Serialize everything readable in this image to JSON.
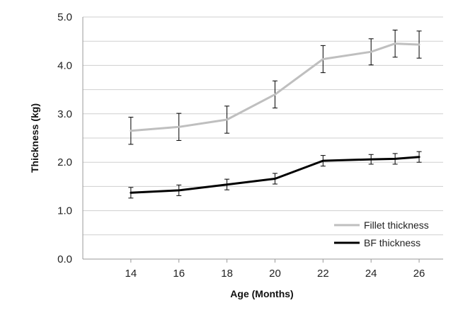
{
  "chart_data": {
    "type": "line",
    "title": "",
    "xlabel": "Age (Months)",
    "ylabel": "Thickness (kg)",
    "x_ticks": [
      14,
      16,
      18,
      20,
      22,
      24,
      26
    ],
    "xlim": [
      12,
      27
    ],
    "ylim": [
      0,
      5
    ],
    "y_ticks": [
      "0.0",
      "1.0",
      "2.0",
      "3.0",
      "4.0",
      "5.0"
    ],
    "grid": "horizontal",
    "legend_position": "bottom-right",
    "series": [
      {
        "name": "Fillet thickness",
        "color": "#bfbfbf",
        "x": [
          14,
          16,
          18,
          20,
          22,
          24,
          25,
          26
        ],
        "y": [
          2.65,
          2.73,
          2.88,
          3.4,
          4.13,
          4.28,
          4.45,
          4.43
        ],
        "error": [
          0.28,
          0.28,
          0.28,
          0.28,
          0.28,
          0.27,
          0.28,
          0.28
        ]
      },
      {
        "name": "BF thickness",
        "color": "#000000",
        "x": [
          14,
          16,
          18,
          20,
          22,
          24,
          25,
          26
        ],
        "y": [
          1.37,
          1.42,
          1.54,
          1.66,
          2.03,
          2.06,
          2.07,
          2.11
        ],
        "error": [
          0.11,
          0.11,
          0.11,
          0.11,
          0.11,
          0.1,
          0.11,
          0.11
        ]
      }
    ]
  }
}
